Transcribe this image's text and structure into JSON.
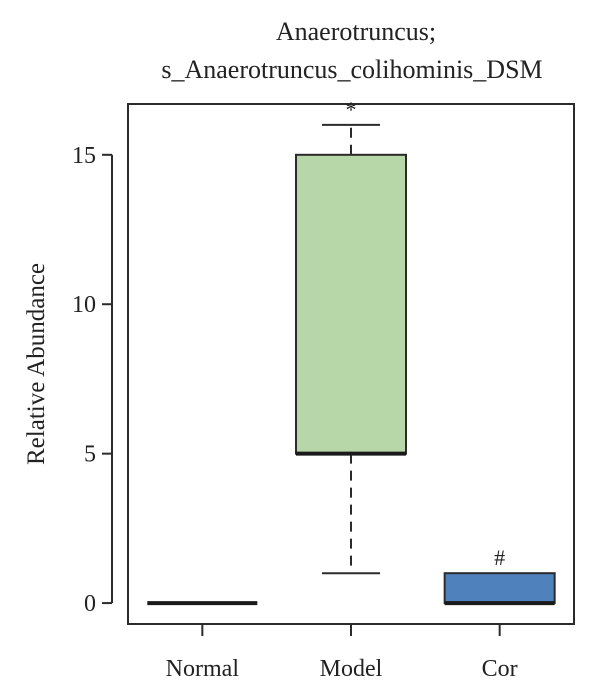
{
  "chart_data": {
    "type": "box",
    "title_lines": [
      "Anaerotruncus;",
      "s_Anaerotruncus_colihominis_DSM"
    ],
    "xlabel": "",
    "ylabel": "Relative Abundance",
    "ylim": [
      -0.7,
      16.7
    ],
    "yticks": [
      0,
      5,
      10,
      15
    ],
    "grid": false,
    "legend": "none",
    "categories": [
      "Normal",
      "Model",
      "Cor"
    ],
    "boxes": [
      {
        "category": "Normal",
        "whisker_low": 0,
        "q1": 0,
        "median": 0,
        "q3": 0,
        "whisker_high": 0,
        "color": "#3b3b3b",
        "annotation": ""
      },
      {
        "category": "Model",
        "whisker_low": 1,
        "q1": 5,
        "median": 5,
        "q3": 15,
        "whisker_high": 16,
        "color": "#b7d7a8",
        "annotation": "*"
      },
      {
        "category": "Cor",
        "whisker_low": 0,
        "q1": 0,
        "median": 0,
        "q3": 1,
        "whisker_high": 1,
        "color": "#4f81bd",
        "annotation": "#"
      }
    ]
  }
}
